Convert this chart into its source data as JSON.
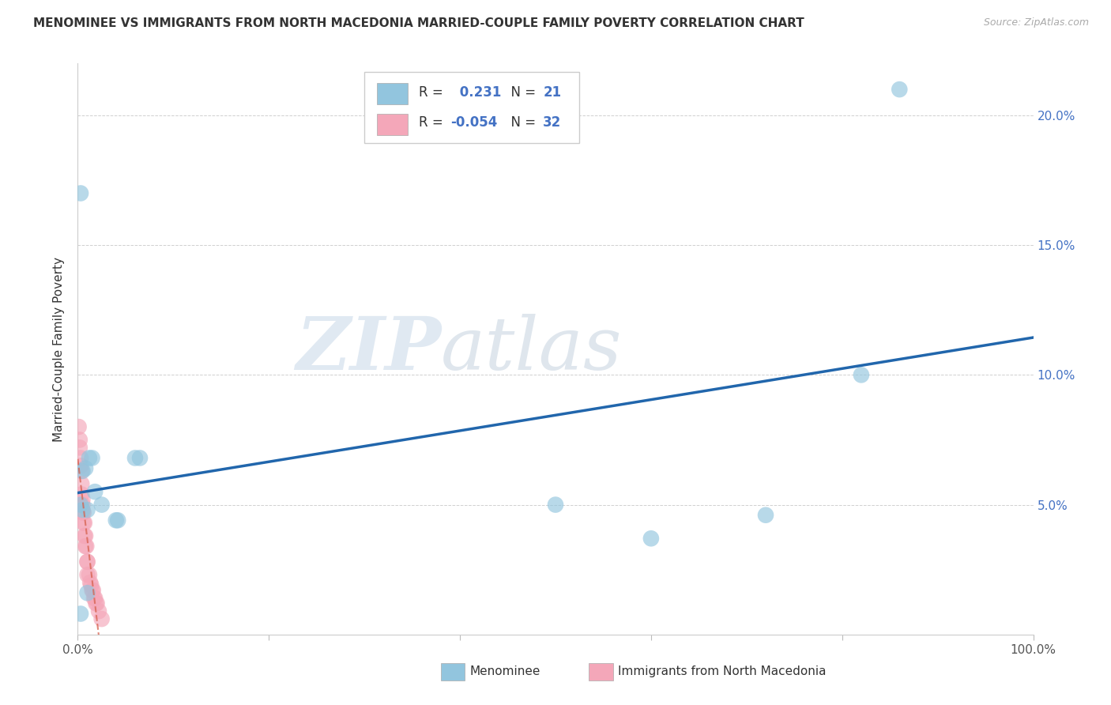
{
  "title": "MENOMINEE VS IMMIGRANTS FROM NORTH MACEDONIA MARRIED-COUPLE FAMILY POVERTY CORRELATION CHART",
  "source": "Source: ZipAtlas.com",
  "ylabel": "Married-Couple Family Poverty",
  "xlim": [
    0,
    1.0
  ],
  "ylim": [
    0,
    0.22
  ],
  "xticks": [
    0.0,
    0.2,
    0.4,
    0.6,
    0.8,
    1.0
  ],
  "yticks": [
    0.0,
    0.05,
    0.1,
    0.15,
    0.2
  ],
  "ytick_labels_right": [
    "",
    "5.0%",
    "10.0%",
    "15.0%",
    "20.0%"
  ],
  "r_menominee": 0.231,
  "n_menominee": 21,
  "r_macedonia": -0.054,
  "n_macedonia": 32,
  "blue_color": "#92c5de",
  "pink_color": "#f4a7b9",
  "line_blue": "#2166ac",
  "line_pink": "#d6604d",
  "menominee_x": [
    0.003,
    0.005,
    0.008,
    0.012,
    0.015,
    0.018,
    0.025,
    0.06,
    0.065,
    0.01,
    0.04,
    0.042,
    0.003,
    0.005,
    0.01,
    0.5,
    0.72,
    0.6,
    0.82,
    0.86,
    0.003
  ],
  "menominee_y": [
    0.17,
    0.063,
    0.064,
    0.068,
    0.068,
    0.055,
    0.05,
    0.068,
    0.068,
    0.048,
    0.044,
    0.044,
    0.05,
    0.048,
    0.016,
    0.05,
    0.046,
    0.037,
    0.1,
    0.21,
    0.008
  ],
  "macedonia_x": [
    0.001,
    0.002,
    0.002,
    0.003,
    0.003,
    0.004,
    0.004,
    0.004,
    0.005,
    0.005,
    0.005,
    0.006,
    0.006,
    0.007,
    0.007,
    0.008,
    0.008,
    0.009,
    0.01,
    0.01,
    0.01,
    0.012,
    0.013,
    0.014,
    0.015,
    0.016,
    0.017,
    0.018,
    0.019,
    0.02,
    0.022,
    0.025
  ],
  "macedonia_y": [
    0.08,
    0.075,
    0.072,
    0.068,
    0.065,
    0.063,
    0.058,
    0.054,
    0.052,
    0.05,
    0.047,
    0.047,
    0.043,
    0.043,
    0.038,
    0.038,
    0.034,
    0.034,
    0.028,
    0.028,
    0.023,
    0.023,
    0.02,
    0.019,
    0.017,
    0.017,
    0.014,
    0.014,
    0.012,
    0.012,
    0.009,
    0.006
  ],
  "watermark_zip": "ZIP",
  "watermark_atlas": "atlas",
  "background_color": "#ffffff",
  "grid_color": "#d0d0d0",
  "title_color": "#333333",
  "source_color": "#aaaaaa",
  "tick_color": "#555555",
  "right_tick_color": "#4472c4"
}
